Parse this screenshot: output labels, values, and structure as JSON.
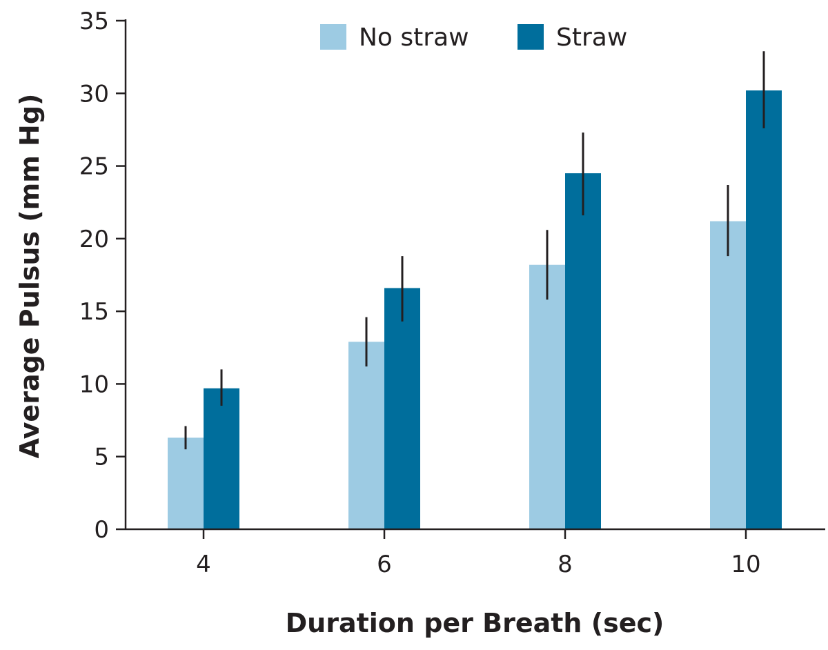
{
  "chart_data": {
    "type": "bar",
    "title": "",
    "xlabel": "Duration per Breath (sec)",
    "ylabel": "Average Pulsus (mm Hg)",
    "categories": [
      "4",
      "6",
      "8",
      "10"
    ],
    "ylim": [
      0,
      35
    ],
    "yticks": [
      "0",
      "5",
      "10",
      "15",
      "20",
      "25",
      "30",
      "35"
    ],
    "grid": false,
    "legend_position": "top",
    "series": [
      {
        "name": "No straw",
        "color": "#9dcbe3",
        "values": [
          6.3,
          12.9,
          18.2,
          21.2
        ],
        "error_low": [
          5.5,
          11.2,
          15.8,
          18.8
        ],
        "error_high": [
          7.1,
          14.6,
          20.6,
          23.7
        ]
      },
      {
        "name": "Straw",
        "color": "#006e9c",
        "values": [
          9.7,
          16.6,
          24.5,
          30.2
        ],
        "error_low": [
          8.5,
          14.3,
          21.6,
          27.6
        ],
        "error_high": [
          11.0,
          18.8,
          27.3,
          32.9
        ]
      }
    ]
  }
}
